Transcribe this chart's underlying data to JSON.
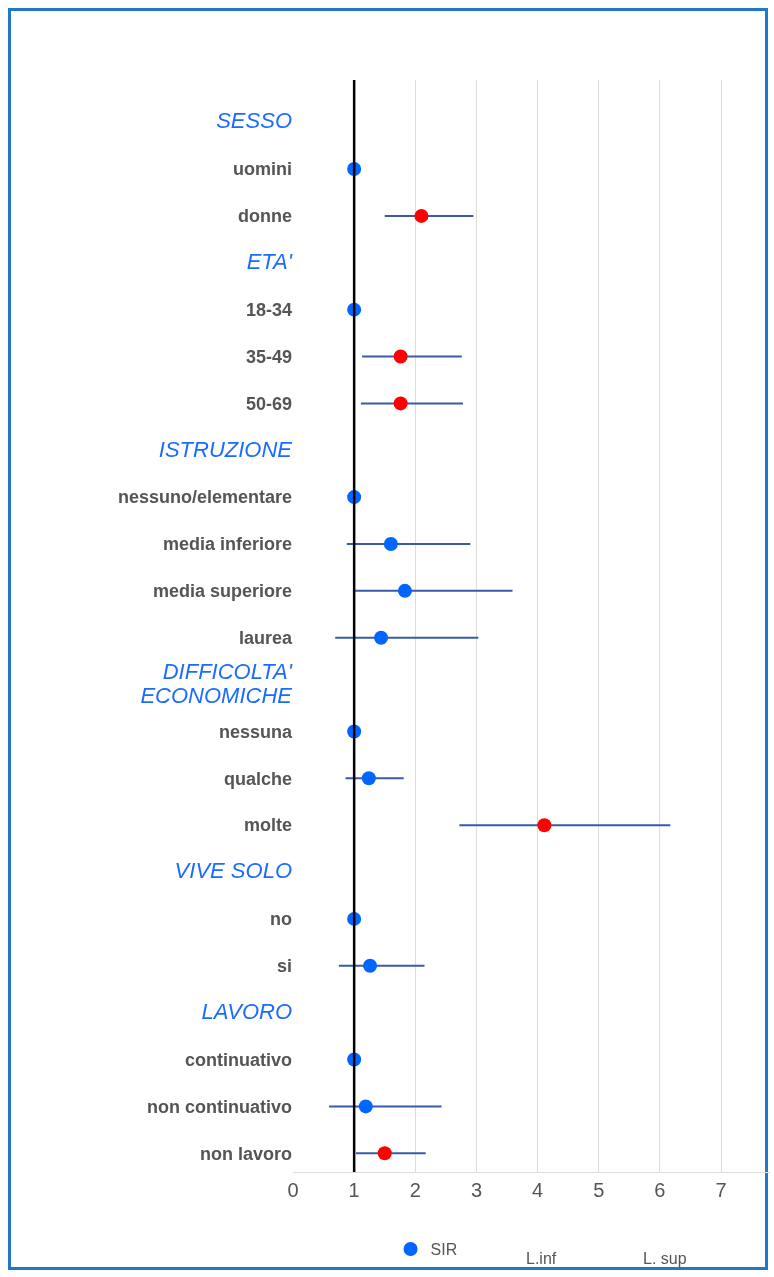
{
  "chart_data": {
    "type": "scatter",
    "categories": [
      "SESSO",
      "uomini",
      "donne",
      "ETA'",
      "18-34",
      "35-49",
      "50-69",
      "ISTRUZIONE",
      "nessuno/elementare",
      "media inferiore",
      "media superiore",
      "laurea",
      "DIFFICOLTA' ECONOMICHE",
      "nessuna",
      "qualche",
      "molte",
      "VIVE SOLO",
      "no",
      "si",
      "LAVORO",
      "continuativo",
      "non continuativo",
      "non lavoro"
    ],
    "series": [
      {
        "name": "SIR",
        "color": "#0066ff",
        "values": [
          null,
          1.0,
          2.1,
          null,
          1.0,
          1.76,
          1.76,
          null,
          1.0,
          1.6,
          1.83,
          1.44,
          null,
          1.0,
          1.24,
          4.11,
          null,
          1.0,
          1.26,
          null,
          1.0,
          1.19,
          1.5
        ],
        "colors": [
          "#0066ff",
          "#0066ff",
          "#ff0000",
          "#0066ff",
          "#0066ff",
          "#ff0000",
          "#ff0000",
          "#0066ff",
          "#0066ff",
          "#0066ff",
          "#0066ff",
          "#0066ff",
          "#0066ff",
          "#0066ff",
          "#0066ff",
          "#ff0000",
          "#0066ff",
          "#0066ff",
          "#0066ff",
          "#0066ff",
          "#0066ff",
          "#0066ff",
          "#ff0000"
        ],
        "errors": [
          null,
          null,
          [
            1.5,
            2.95
          ],
          null,
          null,
          [
            1.13,
            2.76
          ],
          [
            1.11,
            2.78
          ],
          null,
          null,
          [
            0.88,
            2.9
          ],
          [
            0.98,
            3.59
          ],
          [
            0.69,
            3.03
          ],
          null,
          null,
          [
            0.86,
            1.81
          ],
          [
            2.72,
            6.17
          ],
          null,
          null,
          [
            0.75,
            2.15
          ],
          null,
          null,
          [
            0.59,
            2.43
          ],
          [
            1.03,
            2.17
          ]
        ]
      }
    ],
    "orientation": "horizontal",
    "xlim": [
      0,
      7.8
    ],
    "xticks": [
      0,
      1,
      2,
      3,
      4,
      5,
      6,
      7
    ],
    "ref_lines": [
      {
        "axis": "x",
        "value": 1,
        "color": "#000000"
      }
    ],
    "grid": "x",
    "legend": "bottom",
    "marker": "circle",
    "annotations": [
      "L.inf",
      "L. sup"
    ]
  }
}
